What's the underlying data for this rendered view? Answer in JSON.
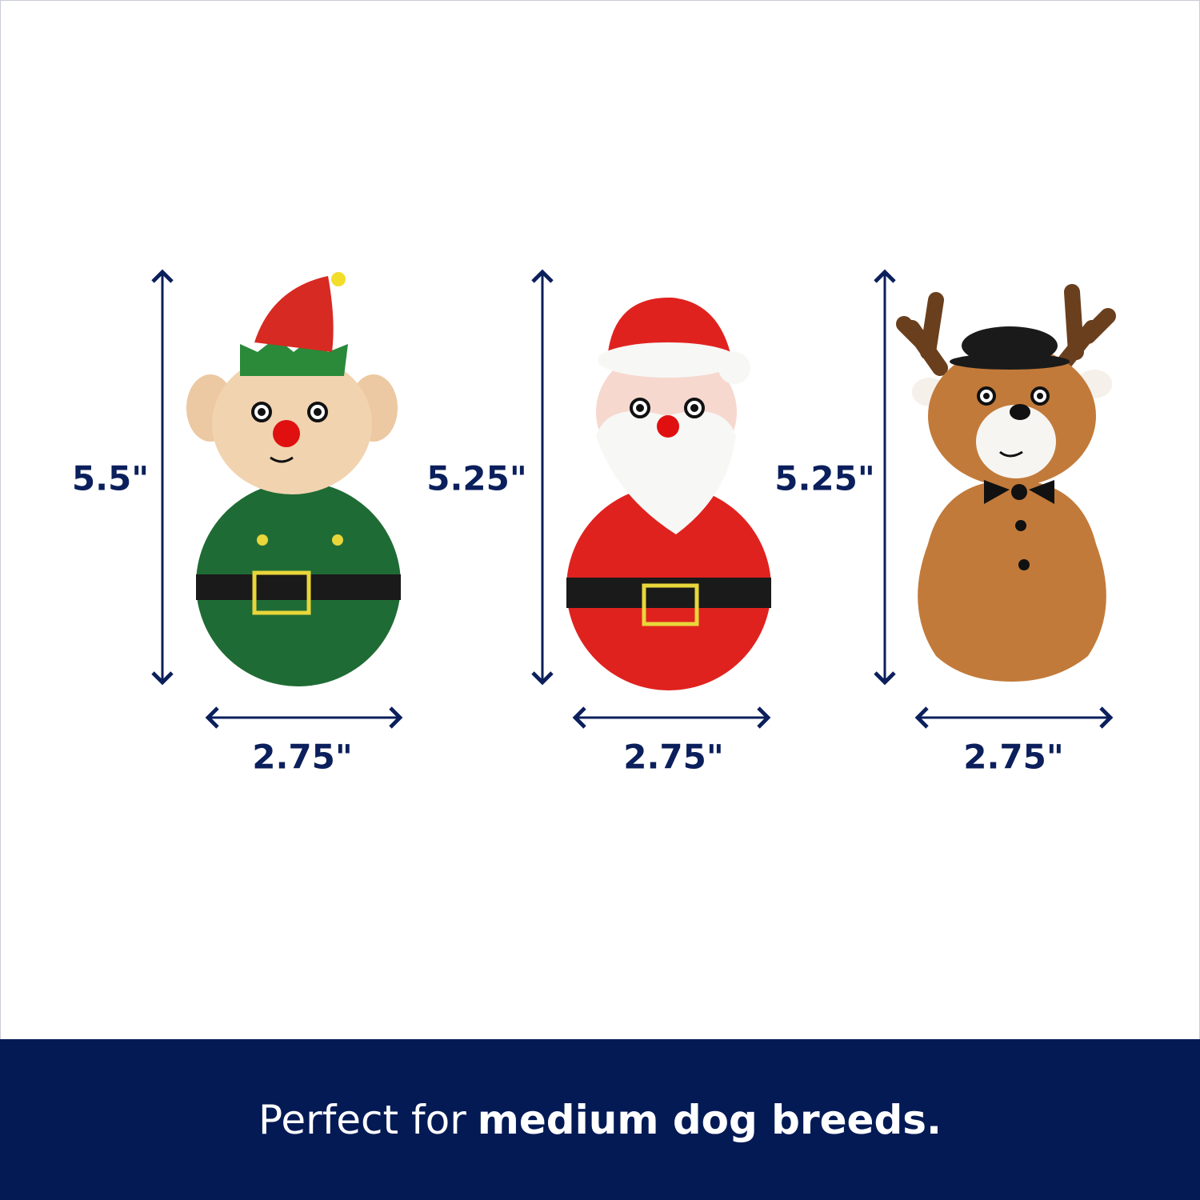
{
  "colors": {
    "navy": "#031a55",
    "label": "#0b1f5c",
    "elf_green": "#1f6b35",
    "santa_red": "#e0221f",
    "reindeer_brown": "#c27a3a"
  },
  "products": [
    {
      "name": "elf",
      "height": "5.5\"",
      "width": "2.75\""
    },
    {
      "name": "santa",
      "height": "5.25\"",
      "width": "2.75\""
    },
    {
      "name": "reindeer",
      "height": "5.25\"",
      "width": "2.75\""
    }
  ],
  "banner": {
    "regular": "Perfect for",
    "bold": "medium dog breeds."
  }
}
